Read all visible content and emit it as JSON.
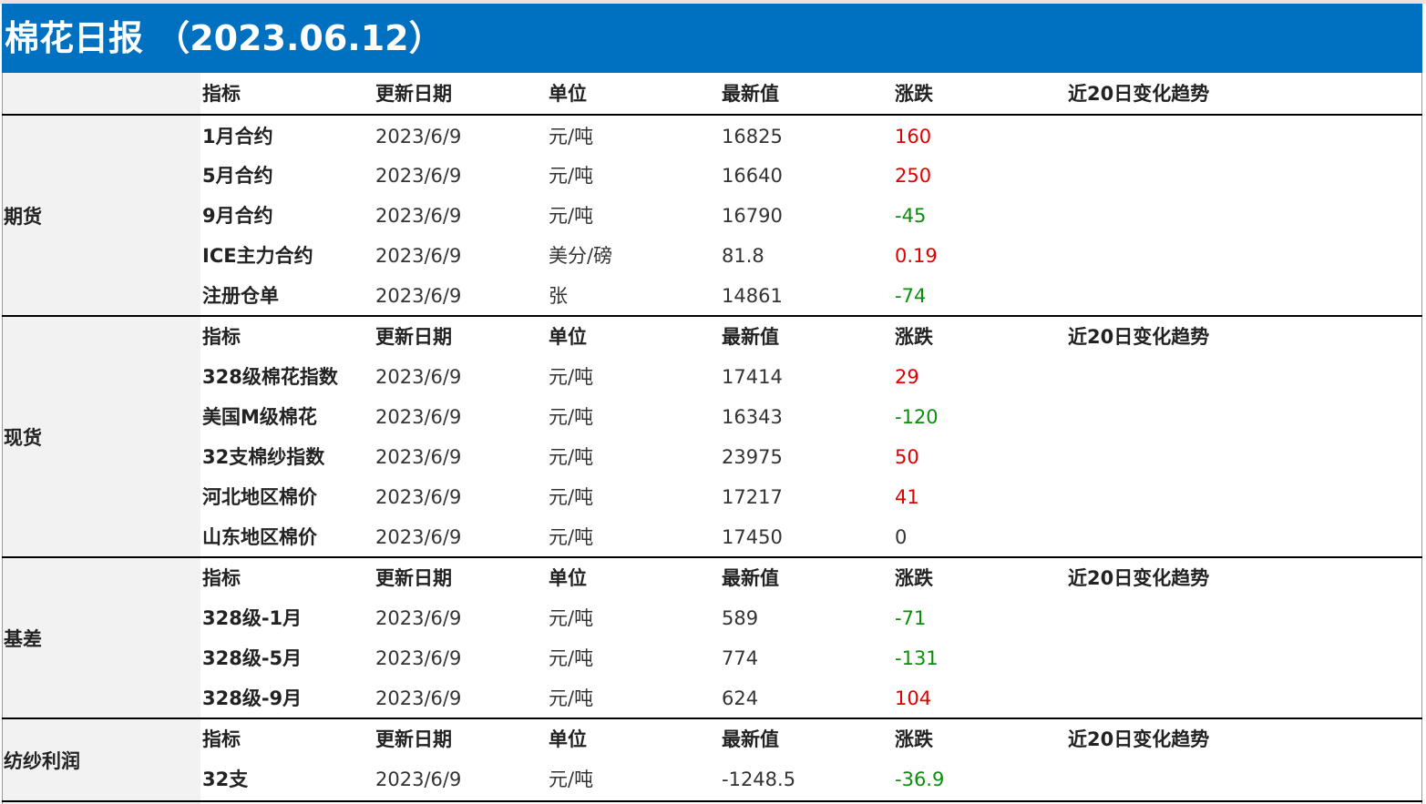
{
  "title": "棉花日报 （2023.06.12）",
  "header": {
    "indicator": "指标",
    "update_date": "更新日期",
    "unit": "单位",
    "latest": "最新值",
    "change": "涨跌",
    "trend": "近20日变化趋势"
  },
  "colors": {
    "title_bg": "#0070c0",
    "up": "#e00000",
    "down": "#0a8f0a"
  },
  "sections": [
    {
      "label": "期货",
      "rows": [
        {
          "name": "1月合约",
          "date": "2023/6/9",
          "unit": "元/吨",
          "value": "16825",
          "change": "160",
          "dir": "up"
        },
        {
          "name": "5月合约",
          "date": "2023/6/9",
          "unit": "元/吨",
          "value": "16640",
          "change": "250",
          "dir": "up"
        },
        {
          "name": "9月合约",
          "date": "2023/6/9",
          "unit": "元/吨",
          "value": "16790",
          "change": "-45",
          "dir": "down"
        },
        {
          "name": "ICE主力合约",
          "date": "2023/6/9",
          "unit": "美分/磅",
          "value": "81.8",
          "change": "0.19",
          "dir": "up"
        },
        {
          "name": "注册仓单",
          "date": "2023/6/9",
          "unit": "张",
          "value": "14861",
          "change": "-74",
          "dir": "down"
        }
      ]
    },
    {
      "label": "现货",
      "rows": [
        {
          "name": "328级棉花指数",
          "date": "2023/6/9",
          "unit": "元/吨",
          "value": "17414",
          "change": "29",
          "dir": "up"
        },
        {
          "name": "美国M级棉花",
          "date": "2023/6/9",
          "unit": "元/吨",
          "value": "16343",
          "change": "-120",
          "dir": "down"
        },
        {
          "name": "32支棉纱指数",
          "date": "2023/6/9",
          "unit": "元/吨",
          "value": "23975",
          "change": "50",
          "dir": "up"
        },
        {
          "name": "河北地区棉价",
          "date": "2023/6/9",
          "unit": "元/吨",
          "value": "17217",
          "change": "41",
          "dir": "up"
        },
        {
          "name": "山东地区棉价",
          "date": "2023/6/9",
          "unit": "元/吨",
          "value": "17450",
          "change": "0",
          "dir": "flat"
        }
      ]
    },
    {
      "label": "基差",
      "rows": [
        {
          "name": "328级-1月",
          "date": "2023/6/9",
          "unit": "元/吨",
          "value": "589",
          "change": "-71",
          "dir": "down"
        },
        {
          "name": "328级-5月",
          "date": "2023/6/9",
          "unit": "元/吨",
          "value": "774",
          "change": "-131",
          "dir": "down"
        },
        {
          "name": "328级-9月",
          "date": "2023/6/9",
          "unit": "元/吨",
          "value": "624",
          "change": "104",
          "dir": "up"
        }
      ]
    },
    {
      "label": "纺纱利润",
      "rows": [
        {
          "name": "32支",
          "date": "2023/6/9",
          "unit": "元/吨",
          "value": "-1248.5",
          "change": "-36.9",
          "dir": "down"
        }
      ]
    }
  ]
}
